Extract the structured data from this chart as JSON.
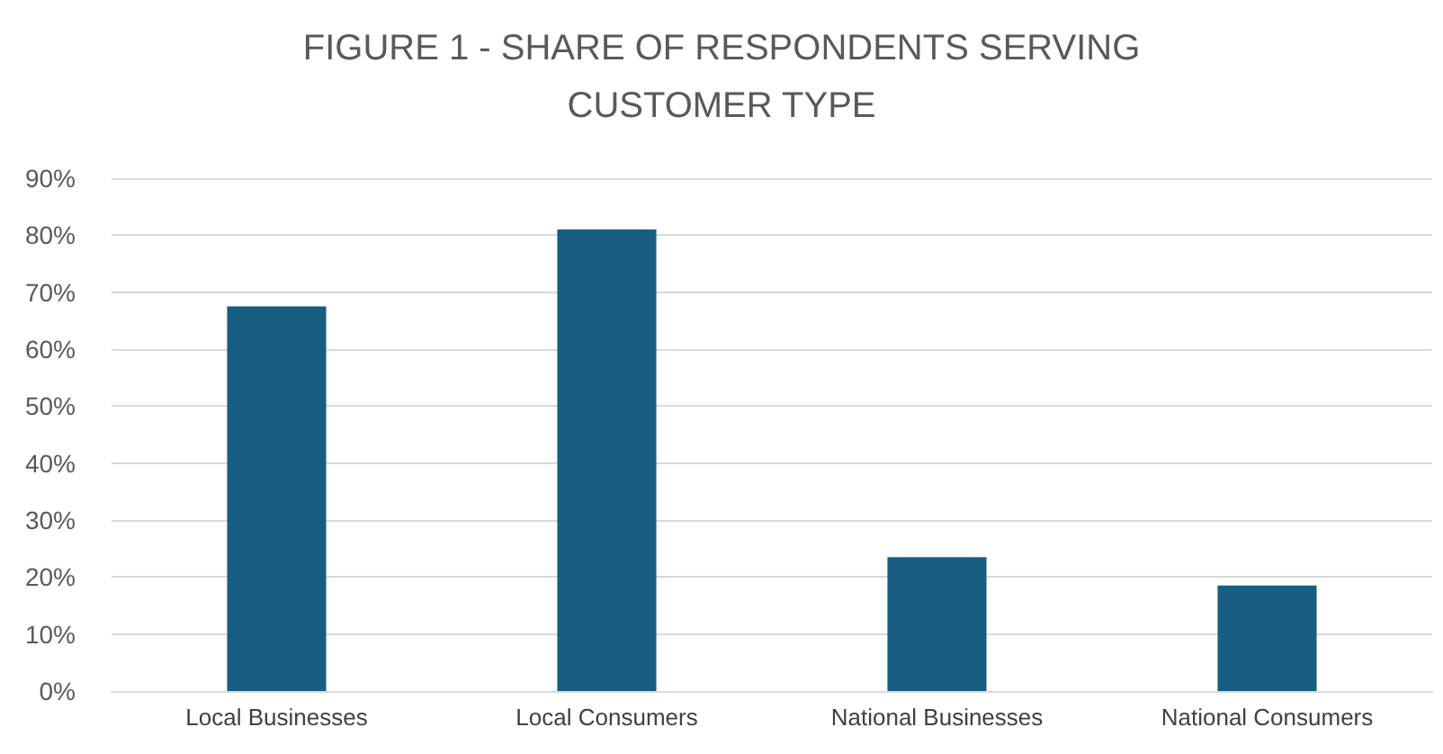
{
  "chart_data": {
    "type": "bar",
    "title": "FIGURE 1 - SHARE OF RESPONDENTS SERVING\nCUSTOMER TYPE",
    "categories": [
      "Local Businesses",
      "Local Consumers",
      "National Businesses",
      "National Consumers"
    ],
    "values": [
      67.5,
      81,
      23.5,
      18.5
    ],
    "color": "#175e82",
    "ylim": [
      0,
      90
    ],
    "yticks": [
      {
        "value": 0,
        "label": "0%"
      },
      {
        "value": 10,
        "label": "10%"
      },
      {
        "value": 20,
        "label": "20%"
      },
      {
        "value": 30,
        "label": "30%"
      },
      {
        "value": 40,
        "label": "40%"
      },
      {
        "value": 50,
        "label": "50%"
      },
      {
        "value": 60,
        "label": "60%"
      },
      {
        "value": 70,
        "label": "70%"
      },
      {
        "value": 80,
        "label": "80%"
      },
      {
        "value": 90,
        "label": "90%"
      }
    ],
    "grid": true
  }
}
